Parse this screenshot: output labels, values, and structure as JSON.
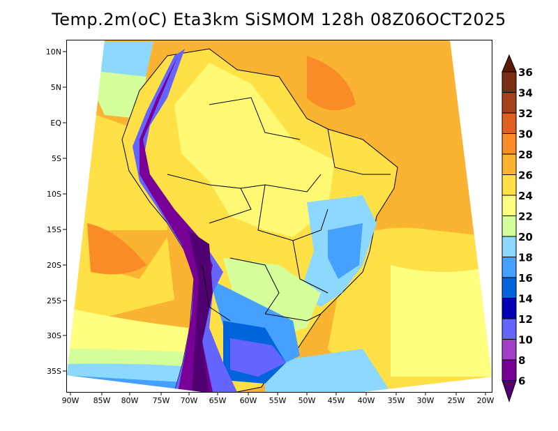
{
  "title": "Temp.2m(oC) Eta3km SiSMOM 128h 08Z06OCT2025",
  "lat_labels": [
    "10N",
    "5N",
    "EQ",
    "5S",
    "10S",
    "15S",
    "20S",
    "25S",
    "30S",
    "35S"
  ],
  "lon_labels": [
    "90W",
    "85W",
    "80W",
    "75W",
    "70W",
    "65W",
    "60W",
    "55W",
    "50W",
    "45W",
    "40W",
    "35W",
    "30W",
    "25W",
    "20W"
  ],
  "colorbar": {
    "ticks": [
      "36",
      "34",
      "32",
      "30",
      "28",
      "26",
      "24",
      "22",
      "20",
      "18",
      "16",
      "14",
      "12",
      "10",
      "8",
      "6"
    ],
    "colors_top_to_bottom": [
      "#5c1a08",
      "#7a2e14",
      "#a8401c",
      "#e0601e",
      "#fa8c28",
      "#fab432",
      "#ffe046",
      "#ffff80",
      "#d4ff9a",
      "#8cd8ff",
      "#46a0ff",
      "#0064dc",
      "#0000b4",
      "#6464ff",
      "#a040c8",
      "#780096",
      "#500070"
    ]
  }
}
